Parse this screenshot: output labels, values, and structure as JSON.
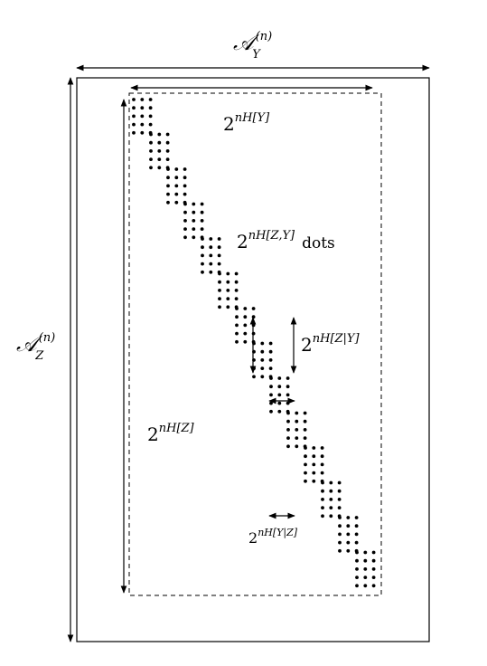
{
  "labels": {
    "set_y": {
      "base": "𝒜",
      "sup": "(n)",
      "sub": "Y"
    },
    "set_z": {
      "base": "𝒜",
      "sup": "(n)",
      "sub": "Z"
    },
    "typ_y": {
      "base": "2",
      "sup": "nH[Y]"
    },
    "typ_z": {
      "base": "2",
      "sup": "nH[Z]"
    },
    "joint": {
      "base": "2",
      "sup": "nH[Z,Y]",
      "suffix": "dots"
    },
    "cond_zy": {
      "base": "2",
      "sup": "nH[Z|Y]"
    },
    "cond_yz": {
      "base": "2",
      "sup": "nH[Y|Z]"
    }
  },
  "colors": {
    "ink": "#000000"
  }
}
